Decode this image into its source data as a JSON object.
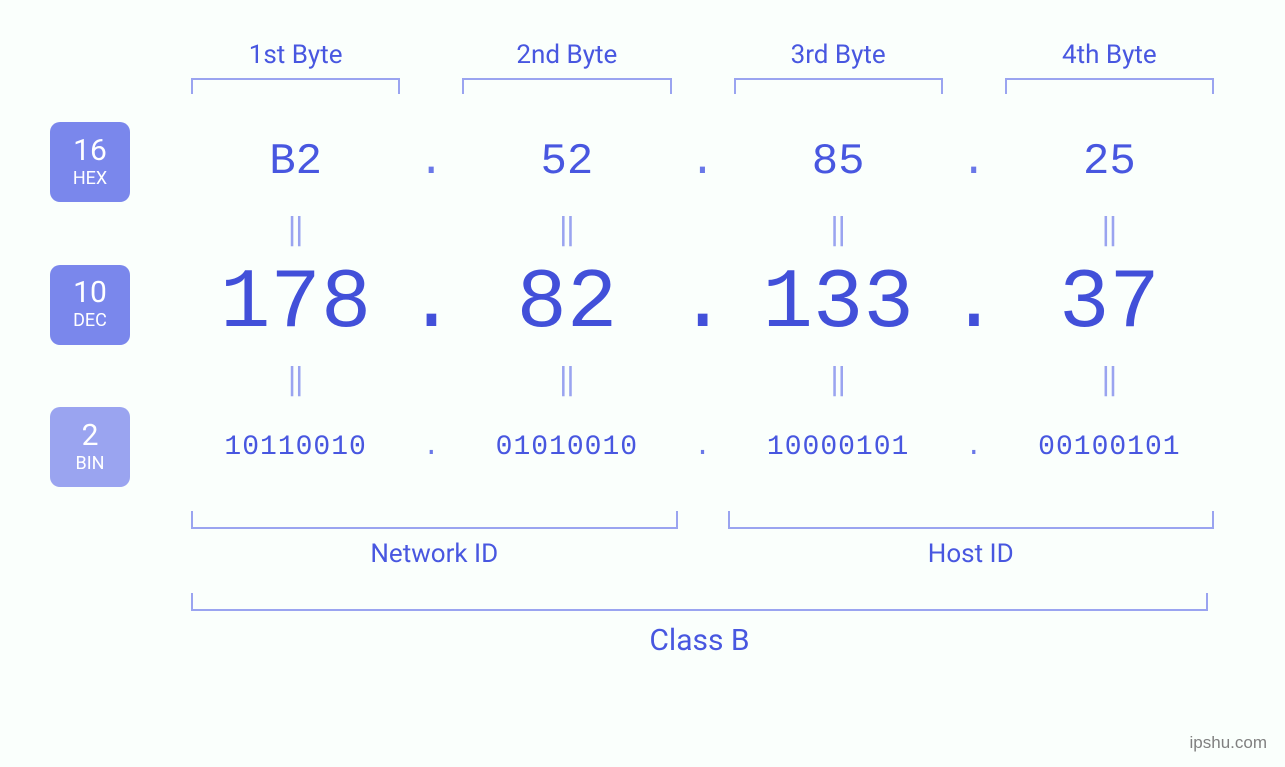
{
  "type": "infographic",
  "background_color": "#fafffc",
  "text_color_primary": "#4857e0",
  "text_color_strong": "#4250d9",
  "bracket_color": "#9aa4f0",
  "equals_color": "#9aa4f0",
  "byte_headers": [
    "1st Byte",
    "2nd Byte",
    "3rd Byte",
    "4th Byte"
  ],
  "header_fontsize": 26,
  "equals_glyph": "‖",
  "badges": {
    "hex": {
      "num": "16",
      "label": "HEX",
      "bg": "#7a87ec"
    },
    "dec": {
      "num": "10",
      "label": "DEC",
      "bg": "#7a87ec"
    },
    "bin": {
      "num": "2",
      "label": "BIN",
      "bg": "#9aa4f0"
    }
  },
  "badge_num_fontsize": 30,
  "badge_label_fontsize": 18,
  "hex": {
    "values": [
      "B2",
      "52",
      "85",
      "25"
    ],
    "fontsize": 44,
    "color": "#4857e0",
    "dot_color": "#6a78e8"
  },
  "dec": {
    "values": [
      "178",
      "82",
      "133",
      "37"
    ],
    "fontsize": 84,
    "color": "#4250d9",
    "dot_color": "#4250d9"
  },
  "bin": {
    "values": [
      "10110010",
      "01010010",
      "10000101",
      "00100101"
    ],
    "fontsize": 28,
    "color": "#4857e0",
    "dot_color": "#6a78e8"
  },
  "dot": ".",
  "footer_groups": {
    "network": {
      "label": "Network ID",
      "spans_bytes": [
        0,
        1
      ]
    },
    "host": {
      "label": "Host ID",
      "spans_bytes": [
        2,
        3
      ]
    }
  },
  "footer_label_fontsize": 26,
  "class_label": "Class B",
  "class_label_fontsize": 30,
  "watermark": "ipshu.com",
  "watermark_color": "#808080",
  "watermark_fontsize": 17
}
